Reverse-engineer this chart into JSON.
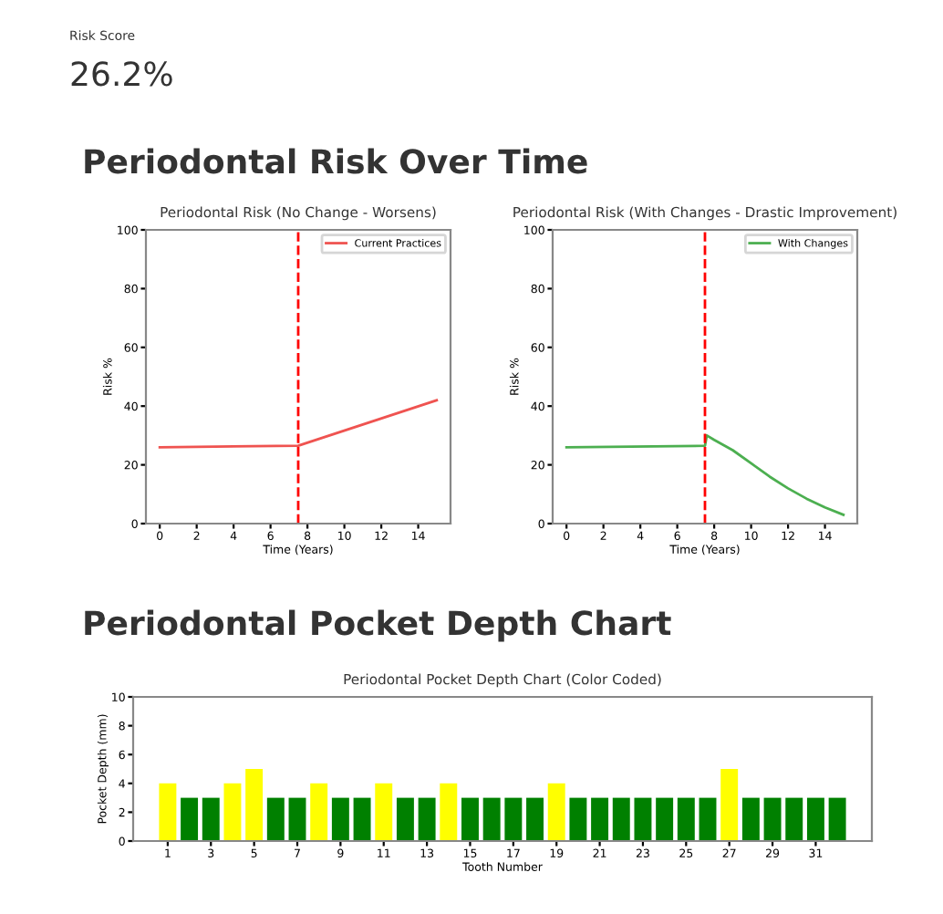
{
  "chart_data": [
    {
      "type": "other",
      "annotations": [
        "Risk Score",
        "26.2%",
        "Periodontal Risk Over Time"
      ]
    },
    {
      "type": "line",
      "title": "Periodontal Risk (No Change - Worsens)",
      "xlabel": "Time (Years)",
      "ylabel": "Risk %",
      "legend": "top right",
      "line_style": "solid",
      "series": [
        {
          "name": "Current Practices",
          "color": "#ef5350",
          "x": [
            0,
            7.5,
            15
          ],
          "values": [
            26,
            26.5,
            42
          ]
        }
      ],
      "xlim": [
        -0.75,
        15.75
      ],
      "ylim": [
        0,
        100
      ],
      "xticks": [
        0,
        2,
        4,
        6,
        8,
        10,
        12,
        14
      ],
      "yticks": [
        0,
        20,
        40,
        60,
        80,
        100
      ],
      "ref_lines": [
        {
          "axis": "x",
          "value": 7.5,
          "color": "#ff0000",
          "line_style": "dashed"
        }
      ],
      "grid": false
    },
    {
      "type": "line",
      "title": "Periodontal Risk (With Changes - Drastic Improvement)",
      "xlabel": "Time (Years)",
      "ylabel": "Risk %",
      "legend": "top right",
      "line_style": "solid",
      "series": [
        {
          "name": "With Changes",
          "color": "#4caf50",
          "x": [
            0,
            7.5,
            7.6,
            8,
            9,
            10,
            11,
            12,
            13,
            14,
            15
          ],
          "values": [
            26,
            26.5,
            30,
            28.5,
            25,
            20.5,
            16,
            12,
            8.5,
            5.5,
            3
          ]
        }
      ],
      "xlim": [
        -0.75,
        15.75
      ],
      "ylim": [
        0,
        100
      ],
      "xticks": [
        0,
        2,
        4,
        6,
        8,
        10,
        12,
        14
      ],
      "yticks": [
        0,
        20,
        40,
        60,
        80,
        100
      ],
      "ref_lines": [
        {
          "axis": "x",
          "value": 7.5,
          "color": "#ff0000",
          "line_style": "dashed"
        }
      ],
      "grid": false
    },
    {
      "type": "other",
      "annotations": [
        "Periodontal Pocket Depth Chart"
      ]
    },
    {
      "type": "bar",
      "title": "Periodontal Pocket Depth Chart (Color Coded)",
      "xlabel": "Tooth Number",
      "ylabel": "Pocket Depth (mm)",
      "x": [
        1,
        2,
        3,
        4,
        5,
        6,
        7,
        8,
        9,
        10,
        11,
        12,
        13,
        14,
        15,
        16,
        17,
        18,
        19,
        20,
        21,
        22,
        23,
        24,
        25,
        26,
        27,
        28,
        29,
        30,
        31,
        32
      ],
      "values": [
        4,
        3,
        3,
        4,
        5,
        3,
        3,
        4,
        3,
        3,
        4,
        3,
        3,
        4,
        3,
        3,
        3,
        3,
        4,
        3,
        3,
        3,
        3,
        3,
        3,
        3,
        5,
        3,
        3,
        3,
        3,
        3
      ],
      "colors": [
        "#ffff00",
        "#008000",
        "#008000",
        "#ffff00",
        "#ffff00",
        "#008000",
        "#008000",
        "#ffff00",
        "#008000",
        "#008000",
        "#ffff00",
        "#008000",
        "#008000",
        "#ffff00",
        "#008000",
        "#008000",
        "#008000",
        "#008000",
        "#ffff00",
        "#008000",
        "#008000",
        "#008000",
        "#008000",
        "#008000",
        "#008000",
        "#008000",
        "#ffff00",
        "#008000",
        "#008000",
        "#008000",
        "#008000",
        "#008000"
      ],
      "xlim": [
        -0.6,
        33.6
      ],
      "ylim": [
        0,
        10
      ],
      "xticks": [
        1,
        3,
        5,
        7,
        9,
        11,
        13,
        15,
        17,
        19,
        21,
        23,
        25,
        27,
        29,
        31
      ],
      "yticks": [
        0,
        2,
        4,
        6,
        8,
        10
      ],
      "grid": false
    }
  ]
}
